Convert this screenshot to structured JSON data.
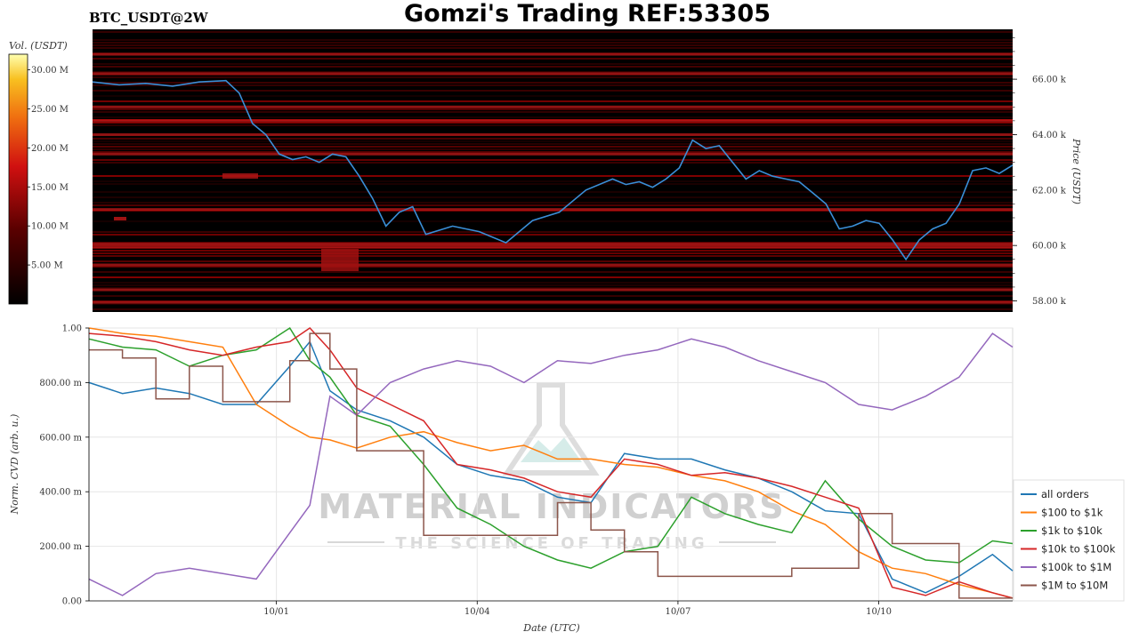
{
  "header": {
    "pair": "BTC_USDT@2W",
    "title": "Gomzi's Trading REF:53305"
  },
  "watermark": {
    "name": "MATERIAL INDICATORS",
    "tagline": "THE SCIENCE OF TRADING"
  },
  "colors": {
    "all orders": "#1f77b4",
    "$100 to $1k": "#ff7f0e",
    "$1k to $10k": "#2ca02c",
    "$10k to $100k": "#d62728",
    "$100k to $1M": "#9467bd",
    "$1M to $10M": "#8c564b",
    "price_line": "#3a8fd8",
    "heatmap_bg": "#000000"
  },
  "chart_data": [
    {
      "type": "heatmap",
      "title": "",
      "ylabel": "Price (USDT)",
      "ylim": [
        57600,
        67800
      ],
      "yticks": [
        58000,
        60000,
        62000,
        64000,
        66000
      ],
      "ytick_labels": [
        "58.00 k",
        "60.00 k",
        "62.00 k",
        "64.00 k",
        "66.00 k"
      ],
      "colorbar": {
        "label": "Vol. (USDT)",
        "range": [
          0,
          32000000
        ],
        "ticks": [
          5000000,
          10000000,
          15000000,
          20000000,
          25000000,
          30000000
        ],
        "tick_labels": [
          "5.00 M",
          "10.00 M",
          "15.00 M",
          "20.00 M",
          "25.00 M",
          "30.00 M"
        ]
      },
      "price_series": {
        "x": [
          0,
          0.4,
          0.8,
          1.2,
          1.6,
          2.0,
          2.2,
          2.4,
          2.6,
          2.8,
          3.0,
          3.2,
          3.4,
          3.6,
          3.8,
          4.0,
          4.2,
          4.4,
          4.6,
          4.8,
          5.0,
          5.4,
          5.8,
          6.2,
          6.6,
          7.0,
          7.4,
          7.8,
          8.0,
          8.2,
          8.4,
          8.6,
          8.8,
          9.0,
          9.2,
          9.4,
          9.6,
          9.8,
          10.0,
          10.2,
          10.4,
          10.6,
          10.8,
          11.0,
          11.2,
          11.4,
          11.6,
          11.8,
          12.0,
          12.2,
          12.4,
          12.6,
          12.8,
          13.0,
          13.2,
          13.4,
          13.6,
          13.8
        ],
        "y": [
          65900,
          65800,
          65850,
          65750,
          65900,
          65950,
          65500,
          64400,
          64000,
          63300,
          63100,
          63200,
          63000,
          63300,
          63200,
          62500,
          61700,
          60700,
          61200,
          61400,
          60400,
          60700,
          60500,
          60100,
          60900,
          61200,
          62000,
          62400,
          62200,
          62300,
          62100,
          62400,
          62800,
          63800,
          63500,
          63600,
          63000,
          62400,
          62700,
          62500,
          62400,
          62300,
          61900,
          61500,
          60600,
          60700,
          60900,
          60800,
          60200,
          59500,
          60200,
          60600,
          60800,
          61500,
          62700,
          62800,
          62600,
          62900
        ]
      }
    },
    {
      "type": "line",
      "title": "",
      "xlabel": "Date (UTC)",
      "ylabel": "Norm. CVD (arb. u.)",
      "ylim": [
        0,
        1
      ],
      "yticks": [
        0,
        0.2,
        0.4,
        0.6,
        0.8,
        1.0
      ],
      "ytick_labels": [
        "0.00",
        "200.00 m",
        "400.00 m",
        "600.00 m",
        "800.00 m",
        "1.00"
      ],
      "xlim": [
        0,
        13.8
      ],
      "xticks": [
        2.8,
        5.8,
        8.8,
        11.8
      ],
      "xtick_labels": [
        "10/01",
        "10/04",
        "10/07",
        "10/10"
      ],
      "grid": true,
      "legend_position": "lower-right-outside",
      "x": [
        0,
        0.5,
        1.0,
        1.5,
        2.0,
        2.5,
        3.0,
        3.3,
        3.6,
        4.0,
        4.5,
        5.0,
        5.5,
        6.0,
        6.5,
        7.0,
        7.5,
        8.0,
        8.5,
        9.0,
        9.5,
        10.0,
        10.5,
        11.0,
        11.5,
        12.0,
        12.5,
        13.0,
        13.5,
        13.8
      ],
      "series": [
        {
          "name": "all orders",
          "values": [
            0.8,
            0.76,
            0.78,
            0.76,
            0.72,
            0.72,
            0.86,
            0.95,
            0.77,
            0.7,
            0.66,
            0.6,
            0.5,
            0.46,
            0.44,
            0.38,
            0.36,
            0.54,
            0.52,
            0.52,
            0.48,
            0.45,
            0.4,
            0.33,
            0.32,
            0.08,
            0.03,
            0.09,
            0.17,
            0.11
          ]
        },
        {
          "name": "$100 to $1k",
          "values": [
            1.0,
            0.98,
            0.97,
            0.95,
            0.93,
            0.72,
            0.64,
            0.6,
            0.59,
            0.56,
            0.6,
            0.62,
            0.58,
            0.55,
            0.57,
            0.52,
            0.52,
            0.5,
            0.49,
            0.46,
            0.44,
            0.4,
            0.33,
            0.28,
            0.18,
            0.12,
            0.1,
            0.06,
            0.03,
            0.01
          ]
        },
        {
          "name": "$1k to $10k",
          "values": [
            0.96,
            0.93,
            0.92,
            0.86,
            0.9,
            0.92,
            1.0,
            0.88,
            0.82,
            0.68,
            0.64,
            0.5,
            0.34,
            0.28,
            0.2,
            0.15,
            0.12,
            0.18,
            0.2,
            0.38,
            0.32,
            0.28,
            0.25,
            0.44,
            0.3,
            0.2,
            0.15,
            0.14,
            0.22,
            0.21
          ]
        },
        {
          "name": "$10k to $100k",
          "values": [
            0.98,
            0.97,
            0.95,
            0.92,
            0.9,
            0.93,
            0.95,
            1.0,
            0.92,
            0.78,
            0.72,
            0.66,
            0.5,
            0.48,
            0.45,
            0.4,
            0.38,
            0.52,
            0.5,
            0.46,
            0.47,
            0.45,
            0.42,
            0.38,
            0.34,
            0.05,
            0.02,
            0.07,
            0.03,
            0.01
          ]
        },
        {
          "name": "$100k to $1M",
          "values": [
            0.08,
            0.02,
            0.1,
            0.12,
            0.1,
            0.08,
            0.25,
            0.35,
            0.75,
            0.68,
            0.8,
            0.85,
            0.88,
            0.86,
            0.8,
            0.88,
            0.87,
            0.9,
            0.92,
            0.96,
            0.93,
            0.88,
            0.84,
            0.8,
            0.72,
            0.7,
            0.75,
            0.82,
            0.98,
            0.93
          ]
        },
        {
          "name": "$1M to $10M",
          "values": [
            0.92,
            0.89,
            0.74,
            0.86,
            0.73,
            0.73,
            0.88,
            0.98,
            0.85,
            0.55,
            0.55,
            0.24,
            0.24,
            0.24,
            0.24,
            0.36,
            0.26,
            0.18,
            0.09,
            0.09,
            0.09,
            0.09,
            0.12,
            0.12,
            0.32,
            0.21,
            0.21,
            0.01,
            0.01,
            0.01
          ]
        }
      ]
    }
  ]
}
